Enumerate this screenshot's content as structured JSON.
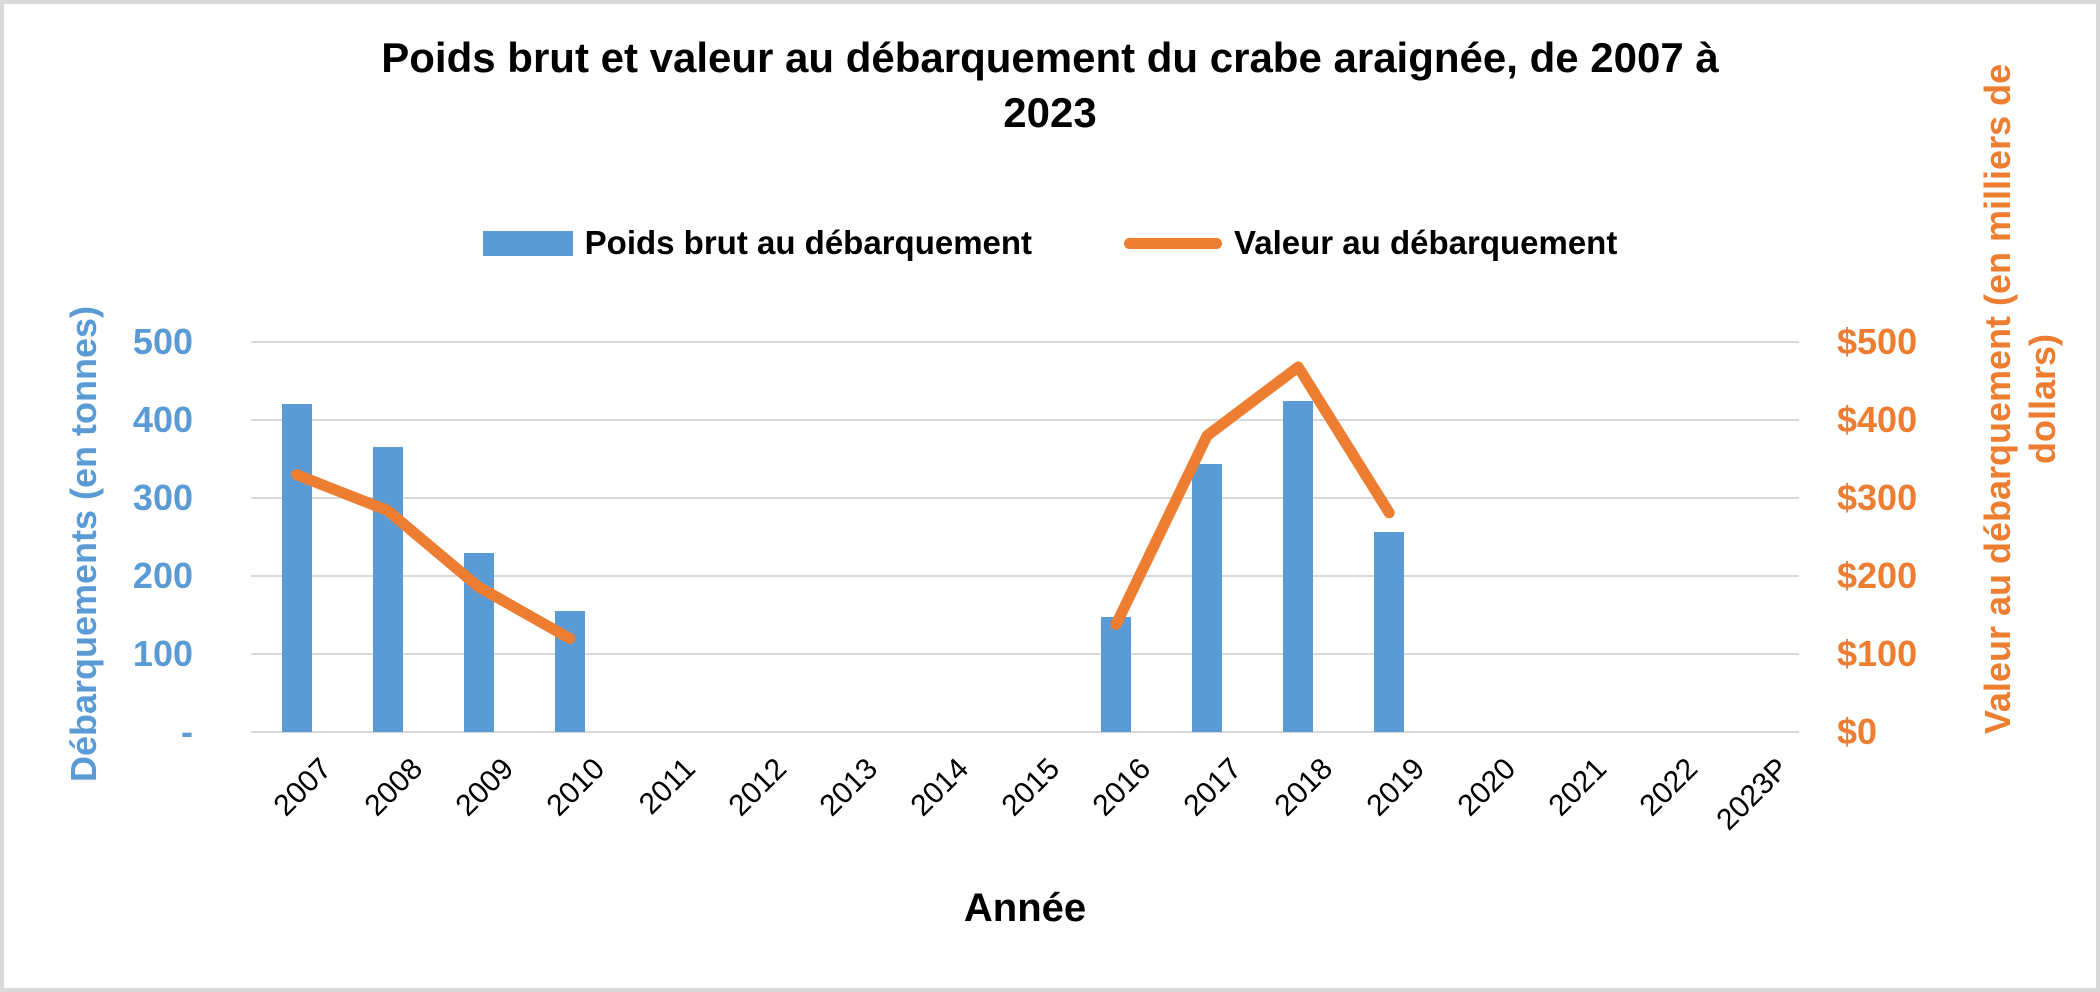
{
  "frame": {
    "background": "#FFFFFF",
    "border_color": "#D9D9D9"
  },
  "title": {
    "line1": "Poids brut et valeur au débarquement du crabe araignée, de 2007 à",
    "line2": "2023",
    "full": "Poids brut et valeur au débarquement du crabe araignée, de 2007 à 2023"
  },
  "legend": {
    "bar_label": "Poids brut au débarquement",
    "line_label": "Valeur au débarquement"
  },
  "colors": {
    "bar": "#5B9BD5",
    "line": "#ED7D31",
    "gridline": "#D9D9D9"
  },
  "axes": {
    "left": {
      "title": "Débarquements (en tonnes)",
      "color": "#5B9BD5",
      "ticks": [
        {
          "label": "500",
          "value": 500
        },
        {
          "label": "400",
          "value": 400
        },
        {
          "label": "300",
          "value": 300
        },
        {
          "label": "200",
          "value": 200
        },
        {
          "label": "100",
          "value": 100
        },
        {
          "label": "-",
          "value": 0
        }
      ]
    },
    "right": {
      "title_line1": "Valeur au débarquement (en milliers de",
      "title_line2": "dollars)",
      "title_full": "Valeur au débarquement (en milliers de dollars)",
      "color": "#ED7D31",
      "ticks": [
        {
          "label": "$500",
          "value": 500
        },
        {
          "label": "$400",
          "value": 400
        },
        {
          "label": "$300",
          "value": 300
        },
        {
          "label": "$200",
          "value": 200
        },
        {
          "label": "$100",
          "value": 100
        },
        {
          "label": "$0",
          "value": 0
        }
      ]
    },
    "x": {
      "title": "Année"
    }
  },
  "chart_data": {
    "type": "combo",
    "title": "Poids brut et valeur au débarquement du crabe araignée, de 2007 à 2023",
    "categories": [
      "2007",
      "2008",
      "2009",
      "2010",
      "2011",
      "2012",
      "2013",
      "2014",
      "2015",
      "2016",
      "2017",
      "2018",
      "2019",
      "2020",
      "2021",
      "2022",
      "2023P"
    ],
    "series": [
      {
        "name": "Poids brut au débarquement",
        "type": "bar",
        "axis": "left",
        "color": "#5B9BD5",
        "values": [
          420,
          365,
          230,
          155,
          null,
          null,
          null,
          null,
          null,
          148,
          343,
          424,
          257,
          null,
          null,
          null,
          null
        ]
      },
      {
        "name": "Valeur au débarquement",
        "type": "line",
        "axis": "right",
        "color": "#ED7D31",
        "values": [
          330,
          284,
          186,
          120,
          null,
          null,
          null,
          null,
          null,
          138,
          380,
          468,
          281,
          null,
          null,
          null,
          null
        ]
      }
    ],
    "left_axis": {
      "label": "Débarquements (en tonnes)",
      "range": [
        0,
        500
      ],
      "tick_step": 100
    },
    "right_axis": {
      "label": "Valeur au débarquement (en milliers de dollars)",
      "range": [
        0,
        500
      ],
      "tick_step": 100,
      "tick_prefix": "$"
    },
    "xlabel": "Année",
    "grid": true,
    "legend_position": "top"
  }
}
